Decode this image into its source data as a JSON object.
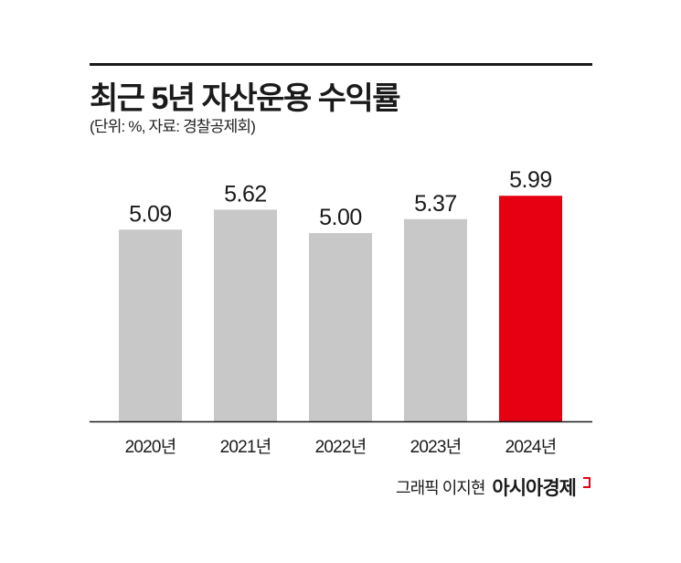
{
  "chart_data": {
    "type": "bar",
    "title": "최근 5년 자산운용 수익률",
    "subtitle": "(단위: %, 자료: 경찰공제회)",
    "categories": [
      "2020년",
      "2021년",
      "2022년",
      "2023년",
      "2024년"
    ],
    "values": [
      5.09,
      5.62,
      5.0,
      5.37,
      5.99
    ],
    "value_labels": [
      "5.09",
      "5.62",
      "5.00",
      "5.37",
      "5.99"
    ],
    "xlabel": "",
    "ylabel": "",
    "ylim": [
      0,
      6.5
    ],
    "grid": false,
    "colors": {
      "default": "#c8c8c8",
      "highlight": "#e60012"
    },
    "highlight_index": 4
  },
  "credit": {
    "byline": "그래픽 이지현",
    "brand": "아시아경제"
  }
}
